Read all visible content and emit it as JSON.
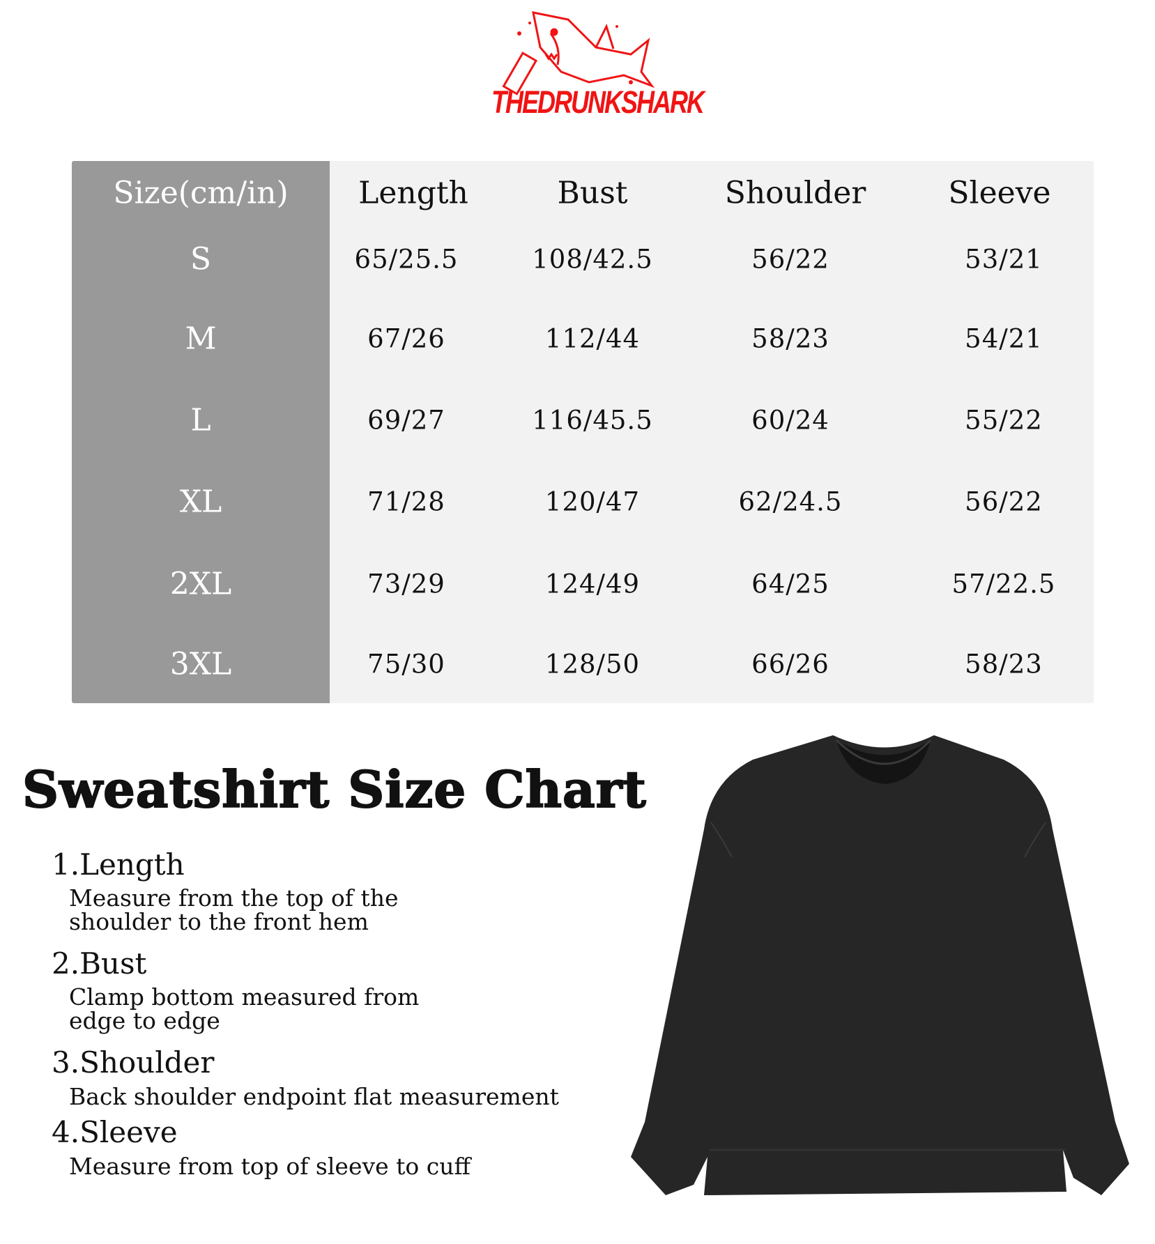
{
  "brand": {
    "logo_text": "THEDRUNKSHARK",
    "color": "#f01414"
  },
  "table": {
    "headers": [
      "Size(cm/in)",
      "Length",
      "Bust",
      "Shoulder",
      "Sleeve"
    ],
    "rows": [
      {
        "size": "S",
        "length": "65/25.5",
        "bust": "108/42.5",
        "shoulder": "56/22",
        "sleeve": "53/21"
      },
      {
        "size": "M",
        "length": "67/26",
        "bust": "112/44",
        "shoulder": "58/23",
        "sleeve": "54/21"
      },
      {
        "size": "L",
        "length": "69/27",
        "bust": "116/45.5",
        "shoulder": "60/24",
        "sleeve": "55/22"
      },
      {
        "size": "XL",
        "length": "71/28",
        "bust": "120/47",
        "shoulder": "62/24.5",
        "sleeve": "56/22"
      },
      {
        "size": "2XL",
        "length": "73/29",
        "bust": "124/49",
        "shoulder": "64/25",
        "sleeve": "57/22.5"
      },
      {
        "size": "3XL",
        "length": "75/30",
        "bust": "128/50",
        "shoulder": "66/26",
        "sleeve": "58/23"
      }
    ],
    "colors": {
      "size_column": "#999999",
      "body": "#f2f2f2"
    }
  },
  "title": "Sweatshirt Size Chart",
  "instructions": [
    {
      "heading": "1.Length",
      "lines": [
        "Measure from the top of the",
        "shoulder to the front hem"
      ]
    },
    {
      "heading": "2.Bust",
      "lines": [
        "Clamp bottom measured from",
        "edge to edge"
      ]
    },
    {
      "heading": "3.Shoulder",
      "lines": [
        "Back shoulder endpoint flat measurement"
      ]
    },
    {
      "heading": "4.Sleeve",
      "lines": [
        "Measure from top of sleeve to cuff"
      ]
    }
  ],
  "product_image": "black-sweatshirt"
}
